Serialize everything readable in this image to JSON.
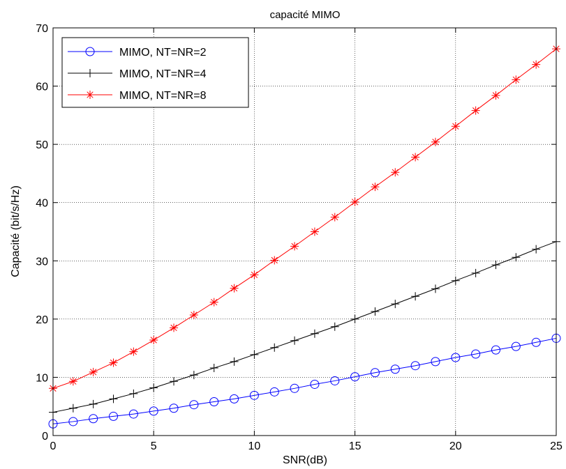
{
  "chart_data": {
    "type": "line",
    "title": "capacité MIMO",
    "xlabel": "SNR(dB)",
    "ylabel": "Capacité (bit/s/Hz)",
    "xlim": [
      0,
      25
    ],
    "ylim": [
      0,
      70
    ],
    "xticks": [
      0,
      5,
      10,
      15,
      20,
      25
    ],
    "yticks": [
      0,
      10,
      20,
      30,
      40,
      50,
      60,
      70
    ],
    "grid": true,
    "legend_position": "top-left",
    "x": [
      0,
      1,
      2,
      3,
      4,
      5,
      6,
      7,
      8,
      9,
      10,
      11,
      12,
      13,
      14,
      15,
      16,
      17,
      18,
      19,
      20,
      21,
      22,
      23,
      24,
      25
    ],
    "series": [
      {
        "name": "MIMO, NT=NR=2",
        "color": "#0000ff",
        "marker": "circle",
        "values": [
          2.0,
          2.4,
          2.9,
          3.3,
          3.7,
          4.2,
          4.7,
          5.3,
          5.8,
          6.3,
          6.9,
          7.5,
          8.1,
          8.8,
          9.4,
          10.1,
          10.8,
          11.4,
          12.0,
          12.7,
          13.4,
          14.0,
          14.7,
          15.3,
          16.0,
          16.7
        ]
      },
      {
        "name": "MIMO, NT=NR=4",
        "color": "#000000",
        "marker": "plus",
        "values": [
          4.0,
          4.7,
          5.4,
          6.3,
          7.2,
          8.2,
          9.3,
          10.4,
          11.6,
          12.7,
          13.9,
          15.1,
          16.3,
          17.5,
          18.7,
          20.0,
          21.3,
          22.6,
          23.9,
          25.2,
          26.6,
          27.9,
          29.3,
          30.6,
          32.0,
          33.3
        ]
      },
      {
        "name": "MIMO, NT=NR=8",
        "color": "#ff0000",
        "marker": "star",
        "values": [
          8.1,
          9.3,
          10.9,
          12.5,
          14.4,
          16.4,
          18.5,
          20.7,
          22.9,
          25.3,
          27.6,
          30.1,
          32.5,
          35.0,
          37.5,
          40.1,
          42.7,
          45.2,
          47.8,
          50.4,
          53.1,
          55.8,
          58.4,
          61.1,
          63.7,
          66.4
        ]
      }
    ]
  }
}
